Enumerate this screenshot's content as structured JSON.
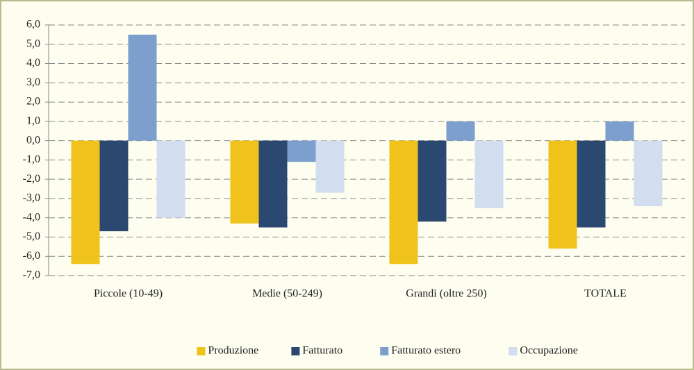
{
  "chart_data": {
    "type": "bar",
    "categories": [
      "Piccole (10-49)",
      "Medie (50-249)",
      "Grandi (oltre 250)",
      "TOTALE"
    ],
    "series": [
      {
        "name": "Produzione",
        "color": "#f0c31c",
        "values": [
          -6.4,
          -4.3,
          -6.4,
          -5.6
        ]
      },
      {
        "name": "Fatturato",
        "color": "#2b4870",
        "values": [
          -4.7,
          -4.5,
          -4.2,
          -4.5
        ]
      },
      {
        "name": "Fatturato estero",
        "color": "#7d9fcd",
        "values": [
          5.5,
          -1.1,
          1.0,
          1.0
        ]
      },
      {
        "name": "Occupazione",
        "color": "#d2deef",
        "values": [
          -4.0,
          -2.7,
          -3.5,
          -3.4
        ]
      }
    ],
    "ylim": [
      -7,
      6
    ],
    "yticks": [
      {
        "value": -7,
        "label": "-7,0"
      },
      {
        "value": -6,
        "label": "-6,0"
      },
      {
        "value": -5,
        "label": "-5,0"
      },
      {
        "value": -4,
        "label": "-4,0"
      },
      {
        "value": -3,
        "label": "-3,0"
      },
      {
        "value": -2,
        "label": "-2,0"
      },
      {
        "value": -1,
        "label": "-1,0"
      },
      {
        "value": 0,
        "label": "0,0"
      },
      {
        "value": 1,
        "label": "1,0"
      },
      {
        "value": 2,
        "label": "2,0"
      },
      {
        "value": 3,
        "label": "3,0"
      },
      {
        "value": 4,
        "label": "4,0"
      },
      {
        "value": 5,
        "label": "5,0"
      },
      {
        "value": 6,
        "label": "6,0"
      }
    ],
    "grid": true,
    "legend": "bottom"
  }
}
